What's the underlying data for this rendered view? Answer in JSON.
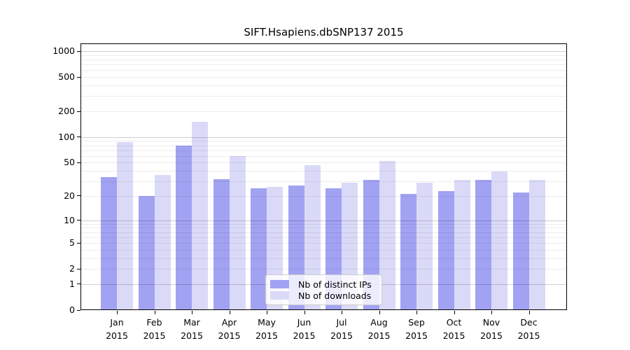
{
  "chart_data": {
    "type": "bar",
    "title": "SIFT.Hsapiens.dbSNP137 2015",
    "categories": [
      "Jan",
      "Feb",
      "Mar",
      "Apr",
      "May",
      "Jun",
      "Jul",
      "Aug",
      "Sep",
      "Oct",
      "Nov",
      "Dec"
    ],
    "year": "2015",
    "series": [
      {
        "name": "Nb of distinct IPs",
        "color": "#a2a2f3",
        "values": [
          34,
          20,
          79,
          32,
          25,
          27,
          25,
          31,
          21,
          23,
          31,
          22
        ]
      },
      {
        "name": "Nb of downloads",
        "color": "#dadaf8",
        "values": [
          87,
          36,
          150,
          60,
          26,
          47,
          29,
          52,
          29,
          31,
          39,
          31
        ]
      }
    ],
    "y_axis": {
      "scale": "log10(1+x)",
      "ticks": [
        0,
        1,
        2,
        5,
        10,
        20,
        50,
        100,
        200,
        500,
        1000
      ],
      "major_gridlines": [
        1,
        10,
        100,
        1000
      ],
      "minor_gridlines": [
        2,
        3,
        4,
        5,
        6,
        7,
        8,
        9,
        20,
        30,
        40,
        50,
        60,
        70,
        80,
        90,
        200,
        300,
        400,
        500,
        600,
        700,
        800,
        900
      ],
      "ylim": [
        0,
        1230
      ]
    },
    "legend": {
      "position": "bottom-center"
    },
    "grid": true
  }
}
